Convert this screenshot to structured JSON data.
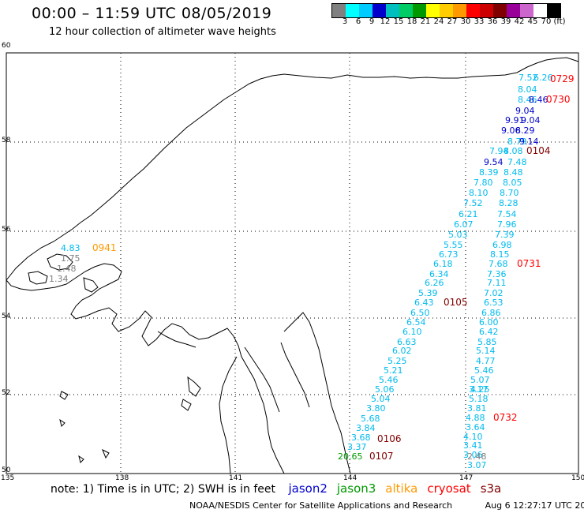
{
  "header": {
    "title": "00:00 – 11:59 UTC 08/05/2019",
    "subtitle": "12 hour collection of altimeter wave heights"
  },
  "legend": {
    "colors": [
      "#808080",
      "#00ffff",
      "#00ccff",
      "#0000cc",
      "#00bfbf",
      "#00cc66",
      "#009900",
      "#ffff00",
      "#ffcc00",
      "#ff9900",
      "#ff0000",
      "#cc0000",
      "#800000",
      "#990099",
      "#cc66cc",
      "#ffffff",
      "#000000"
    ],
    "labels": [
      "3",
      "6",
      "9",
      "12",
      "15",
      "18",
      "21",
      "24",
      "27",
      "30",
      "33",
      "36",
      "39",
      "42",
      "45",
      "70",
      "(ft)"
    ]
  },
  "axes": {
    "lat_labels": [
      "60",
      "58",
      "56",
      "54",
      "52",
      "50"
    ],
    "lon_labels": [
      "135",
      "138",
      "141",
      "144",
      "147",
      "150"
    ]
  },
  "points": [
    {
      "text": "7.52",
      "color": "#00bbee",
      "cls": "wv"
    },
    {
      "text": "6.26",
      "color": "#00bbee",
      "cls": "wv"
    },
    {
      "text": "0729",
      "color": "#ff0000",
      "cls": "pt"
    },
    {
      "text": "8.04",
      "color": "#00bbee",
      "cls": "wv"
    },
    {
      "text": "8.46",
      "color": "#00bbee",
      "cls": "wv"
    },
    {
      "text": "8.46",
      "color": "#0000cc",
      "cls": "wv"
    },
    {
      "text": "0730",
      "color": "#ff0000",
      "cls": "pt"
    },
    {
      "text": "9.04",
      "color": "#0000cc",
      "cls": "wv"
    },
    {
      "text": "9.91",
      "color": "#0000cc",
      "cls": "wv"
    },
    {
      "text": "9.04",
      "color": "#0000cc",
      "cls": "wv"
    },
    {
      "text": "9.06",
      "color": "#0000cc",
      "cls": "wv"
    },
    {
      "text": "8.29",
      "color": "#0000cc",
      "cls": "wv"
    },
    {
      "text": "8.79",
      "color": "#00bbee",
      "cls": "wv"
    },
    {
      "text": "9.14",
      "color": "#0000cc",
      "cls": "wv"
    },
    {
      "text": "7.94",
      "color": "#00bbee",
      "cls": "wv"
    },
    {
      "text": "8.08",
      "color": "#00bbee",
      "cls": "wv"
    },
    {
      "text": "0104",
      "color": "#800000",
      "cls": "pt"
    },
    {
      "text": "9.54",
      "color": "#0000cc",
      "cls": "wv"
    },
    {
      "text": "7.48",
      "color": "#00bbee",
      "cls": "wv"
    },
    {
      "text": "8.39",
      "color": "#00bbee",
      "cls": "wv"
    },
    {
      "text": "8.48",
      "color": "#00bbee",
      "cls": "wv"
    },
    {
      "text": "7.80",
      "color": "#00bbee",
      "cls": "wv"
    },
    {
      "text": "8.05",
      "color": "#00bbee",
      "cls": "wv"
    },
    {
      "text": "8.10",
      "color": "#00bbee",
      "cls": "wv"
    },
    {
      "text": "8.70",
      "color": "#00bbee",
      "cls": "wv"
    },
    {
      "text": "7.52",
      "color": "#00bbee",
      "cls": "wv"
    },
    {
      "text": "8.28",
      "color": "#00bbee",
      "cls": "wv"
    },
    {
      "text": "6.21",
      "color": "#00bbee",
      "cls": "wv"
    },
    {
      "text": "7.54",
      "color": "#00bbee",
      "cls": "wv"
    },
    {
      "text": "6.07",
      "color": "#00bbee",
      "cls": "wv"
    },
    {
      "text": "7.96",
      "color": "#00bbee",
      "cls": "wv"
    },
    {
      "text": "5.03",
      "color": "#00bbee",
      "cls": "wv"
    },
    {
      "text": "7.39",
      "color": "#00bbee",
      "cls": "wv"
    },
    {
      "text": "5.55",
      "color": "#00bbee",
      "cls": "wv"
    },
    {
      "text": "6.98",
      "color": "#00bbee",
      "cls": "wv"
    },
    {
      "text": "6.73",
      "color": "#00bbee",
      "cls": "wv"
    },
    {
      "text": "8.15",
      "color": "#00bbee",
      "cls": "wv"
    },
    {
      "text": "6.18",
      "color": "#00bbee",
      "cls": "wv"
    },
    {
      "text": "7.68",
      "color": "#00bbee",
      "cls": "wv"
    },
    {
      "text": "0731",
      "color": "#ff0000",
      "cls": "pt"
    },
    {
      "text": "6.34",
      "color": "#00bbee",
      "cls": "wv"
    },
    {
      "text": "7.36",
      "color": "#00bbee",
      "cls": "wv"
    },
    {
      "text": "6.26",
      "color": "#00bbee",
      "cls": "wv"
    },
    {
      "text": "7.11",
      "color": "#00bbee",
      "cls": "wv"
    },
    {
      "text": "5.39",
      "color": "#00bbee",
      "cls": "wv"
    },
    {
      "text": "7.02",
      "color": "#00bbee",
      "cls": "wv"
    },
    {
      "text": "6.43",
      "color": "#00bbee",
      "cls": "wv"
    },
    {
      "text": "0105",
      "color": "#800000",
      "cls": "pt"
    },
    {
      "text": "6.53",
      "color": "#00bbee",
      "cls": "wv"
    },
    {
      "text": "6.50",
      "color": "#00bbee",
      "cls": "wv"
    },
    {
      "text": "6.86",
      "color": "#00bbee",
      "cls": "wv"
    },
    {
      "text": "6.54",
      "color": "#00bbee",
      "cls": "wv"
    },
    {
      "text": "6.00",
      "color": "#00bbee",
      "cls": "wv"
    },
    {
      "text": "6.10",
      "color": "#00bbee",
      "cls": "wv"
    },
    {
      "text": "6.42",
      "color": "#00bbee",
      "cls": "wv"
    },
    {
      "text": "6.63",
      "color": "#00bbee",
      "cls": "wv"
    },
    {
      "text": "5.85",
      "color": "#00bbee",
      "cls": "wv"
    },
    {
      "text": "6.02",
      "color": "#00bbee",
      "cls": "wv"
    },
    {
      "text": "5.14",
      "color": "#00bbee",
      "cls": "wv"
    },
    {
      "text": "5.25",
      "color": "#00bbee",
      "cls": "wv"
    },
    {
      "text": "4.77",
      "color": "#00bbee",
      "cls": "wv"
    },
    {
      "text": "5.21",
      "color": "#00bbee",
      "cls": "wv"
    },
    {
      "text": "5.46",
      "color": "#00bbee",
      "cls": "wv"
    },
    {
      "text": "5.46",
      "color": "#00bbee",
      "cls": "wv"
    },
    {
      "text": "5.07",
      "color": "#00bbee",
      "cls": "wv"
    },
    {
      "text": "4.25",
      "color": "#00bbee",
      "cls": "wv"
    },
    {
      "text": "5.06",
      "color": "#00bbee",
      "cls": "wv"
    },
    {
      "text": "3.17",
      "color": "#00bbee",
      "cls": "wv"
    },
    {
      "text": "5.04",
      "color": "#00bbee",
      "cls": "wv"
    },
    {
      "text": "5.18",
      "color": "#00bbee",
      "cls": "wv"
    },
    {
      "text": "3.80",
      "color": "#00bbee",
      "cls": "wv"
    },
    {
      "text": "3.81",
      "color": "#00bbee",
      "cls": "wv"
    },
    {
      "text": "4.88",
      "color": "#00bbee",
      "cls": "wv"
    },
    {
      "text": "0732",
      "color": "#ff0000",
      "cls": "pt"
    },
    {
      "text": "5.68",
      "color": "#00bbee",
      "cls": "wv"
    },
    {
      "text": "3.64",
      "color": "#00bbee",
      "cls": "wv"
    },
    {
      "text": "3.84",
      "color": "#00bbee",
      "cls": "wv"
    },
    {
      "text": "4.10",
      "color": "#00bbee",
      "cls": "wv"
    },
    {
      "text": "3.68",
      "color": "#00bbee",
      "cls": "wv"
    },
    {
      "text": "0106",
      "color": "#800000",
      "cls": "pt"
    },
    {
      "text": "3.41",
      "color": "#00bbee",
      "cls": "wv"
    },
    {
      "text": "3.37",
      "color": "#00bbee",
      "cls": "wv"
    },
    {
      "text": "3.06",
      "color": "#00bbee",
      "cls": "wv"
    },
    {
      "text": "20.65",
      "color": "#009900",
      "cls": "wv"
    },
    {
      "text": "0107",
      "color": "#800000",
      "cls": "pt"
    },
    {
      "text": "2.48",
      "color": "#808080",
      "cls": "wv"
    },
    {
      "text": "3.07",
      "color": "#00bbee",
      "cls": "wv"
    },
    {
      "text": "4.83",
      "color": "#00bbee",
      "cls": "wv"
    },
    {
      "text": "0941",
      "color": "#ff9900",
      "cls": "pt"
    },
    {
      "text": "1.75",
      "color": "#808080",
      "cls": "wv"
    },
    {
      "text": "1.48",
      "color": "#808080",
      "cls": "wv"
    },
    {
      "text": "1.34",
      "color": "#808080",
      "cls": "wv"
    }
  ],
  "note": {
    "text": "note:  1) Time is in UTC; 2) SWH is in feet",
    "missions": [
      {
        "name": "jason2",
        "color": "#0000cc"
      },
      {
        "name": "jason3",
        "color": "#009900"
      },
      {
        "name": "altika",
        "color": "#ff9900"
      },
      {
        "name": "cryosat",
        "color": "#ff0000"
      },
      {
        "name": "s3a",
        "color": "#800000"
      }
    ]
  },
  "footer": {
    "center": "NOAA/NESDIS Center for Satellite Applications and Research",
    "timestamp": "Aug  6 12:27:17 UTC 2019"
  }
}
